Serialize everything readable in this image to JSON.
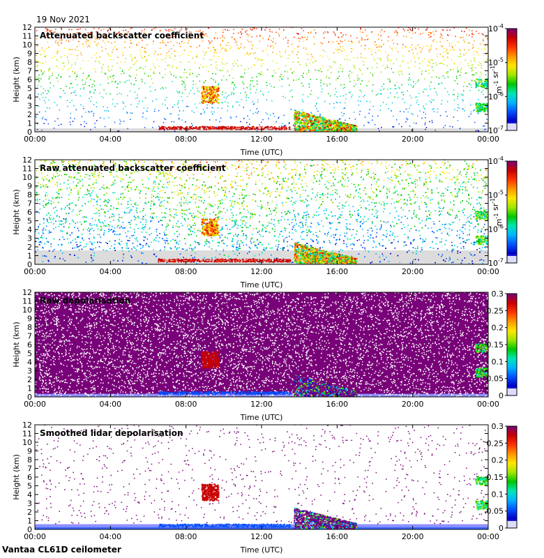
{
  "date": "19 Nov 2021",
  "footer": "Vantaa CL61D ceilometer",
  "colors": {
    "jet": [
      "#dcdcdc",
      "#9090ff",
      "#0000c8",
      "#0050ff",
      "#00b4ff",
      "#00e6b4",
      "#00c800",
      "#a0e600",
      "#ffe600",
      "#ff9600",
      "#ff3200",
      "#c80000",
      "#780078"
    ],
    "background": "#ffffff",
    "surface_gray": "#dcdcdc"
  },
  "chart_data": [
    {
      "type": "heatmap",
      "title": "Attenuated backscatter coefficient",
      "xlabel": "Time (UTC)",
      "ylabel": "Height (km)",
      "xlim": [
        0,
        24
      ],
      "ylim": [
        0,
        12
      ],
      "x_ticks": [
        "00:00",
        "04:00",
        "08:00",
        "12:00",
        "16:00",
        "20:00",
        "00:00"
      ],
      "y_ticks": [
        "0",
        "1",
        "2",
        "3",
        "4",
        "5",
        "6",
        "7",
        "8",
        "9",
        "10",
        "11",
        "12"
      ],
      "colorbar": {
        "scale": "log",
        "range": [
          1e-07,
          0.0001
        ],
        "ticks": [
          {
            "base": "10",
            "exp": "-4"
          },
          {
            "base": "10",
            "exp": "-5"
          },
          {
            "base": "10",
            "exp": "-6"
          },
          {
            "base": "10",
            "exp": "-7"
          }
        ],
        "unit_parts": [
          {
            "base": "m",
            "exp": "-1"
          },
          {
            "base": " sr",
            "exp": "-1"
          }
        ]
      },
      "style": "filtered"
    },
    {
      "type": "heatmap",
      "title": "Raw attenuated backscatter coefficient",
      "xlabel": "Time (UTC)",
      "ylabel": "Height (km)",
      "xlim": [
        0,
        24
      ],
      "ylim": [
        0,
        12
      ],
      "x_ticks": [
        "00:00",
        "04:00",
        "08:00",
        "12:00",
        "16:00",
        "20:00",
        "00:00"
      ],
      "y_ticks": [
        "0",
        "1",
        "2",
        "3",
        "4",
        "5",
        "6",
        "7",
        "8",
        "9",
        "10",
        "11",
        "12"
      ],
      "colorbar": {
        "scale": "log",
        "range": [
          1e-07,
          0.0001
        ],
        "ticks": [
          {
            "base": "10",
            "exp": "-4"
          },
          {
            "base": "10",
            "exp": "-5"
          },
          {
            "base": "10",
            "exp": "-6"
          },
          {
            "base": "10",
            "exp": "-7"
          }
        ],
        "unit_parts": [
          {
            "base": "m",
            "exp": "-1"
          },
          {
            "base": " sr",
            "exp": "-1"
          }
        ]
      },
      "style": "raw_backscatter"
    },
    {
      "type": "heatmap",
      "title": "Raw depolarisation",
      "xlabel": "Time (UTC)",
      "ylabel": "Height (km)",
      "xlim": [
        0,
        24
      ],
      "ylim": [
        0,
        12
      ],
      "x_ticks": [
        "00:00",
        "04:00",
        "08:00",
        "12:00",
        "16:00",
        "20:00",
        "00:00"
      ],
      "y_ticks": [
        "0",
        "1",
        "2",
        "3",
        "4",
        "5",
        "6",
        "7",
        "8",
        "9",
        "10",
        "11",
        "12"
      ],
      "colorbar": {
        "scale": "linear",
        "range": [
          0,
          0.3
        ],
        "ticks": [
          "0.3",
          "0.25",
          "0.2",
          "0.15",
          "0.1",
          "0.05",
          "0"
        ]
      },
      "style": "raw_depol"
    },
    {
      "type": "heatmap",
      "title": "Smoothed lidar depolarisation",
      "xlabel": "Time (UTC)",
      "ylabel": "Height (km)",
      "xlim": [
        0,
        24
      ],
      "ylim": [
        0,
        12
      ],
      "x_ticks": [
        "00:00",
        "04:00",
        "08:00",
        "12:00",
        "16:00",
        "20:00",
        "00:00"
      ],
      "y_ticks": [
        "0",
        "1",
        "2",
        "3",
        "4",
        "5",
        "6",
        "7",
        "8",
        "9",
        "10",
        "11",
        "12"
      ],
      "colorbar": {
        "scale": "linear",
        "range": [
          0,
          0.3
        ],
        "ticks": [
          "0.3",
          "0.25",
          "0.2",
          "0.15",
          "0.1",
          "0.05",
          "0"
        ]
      },
      "style": "smoothed_depol"
    }
  ]
}
